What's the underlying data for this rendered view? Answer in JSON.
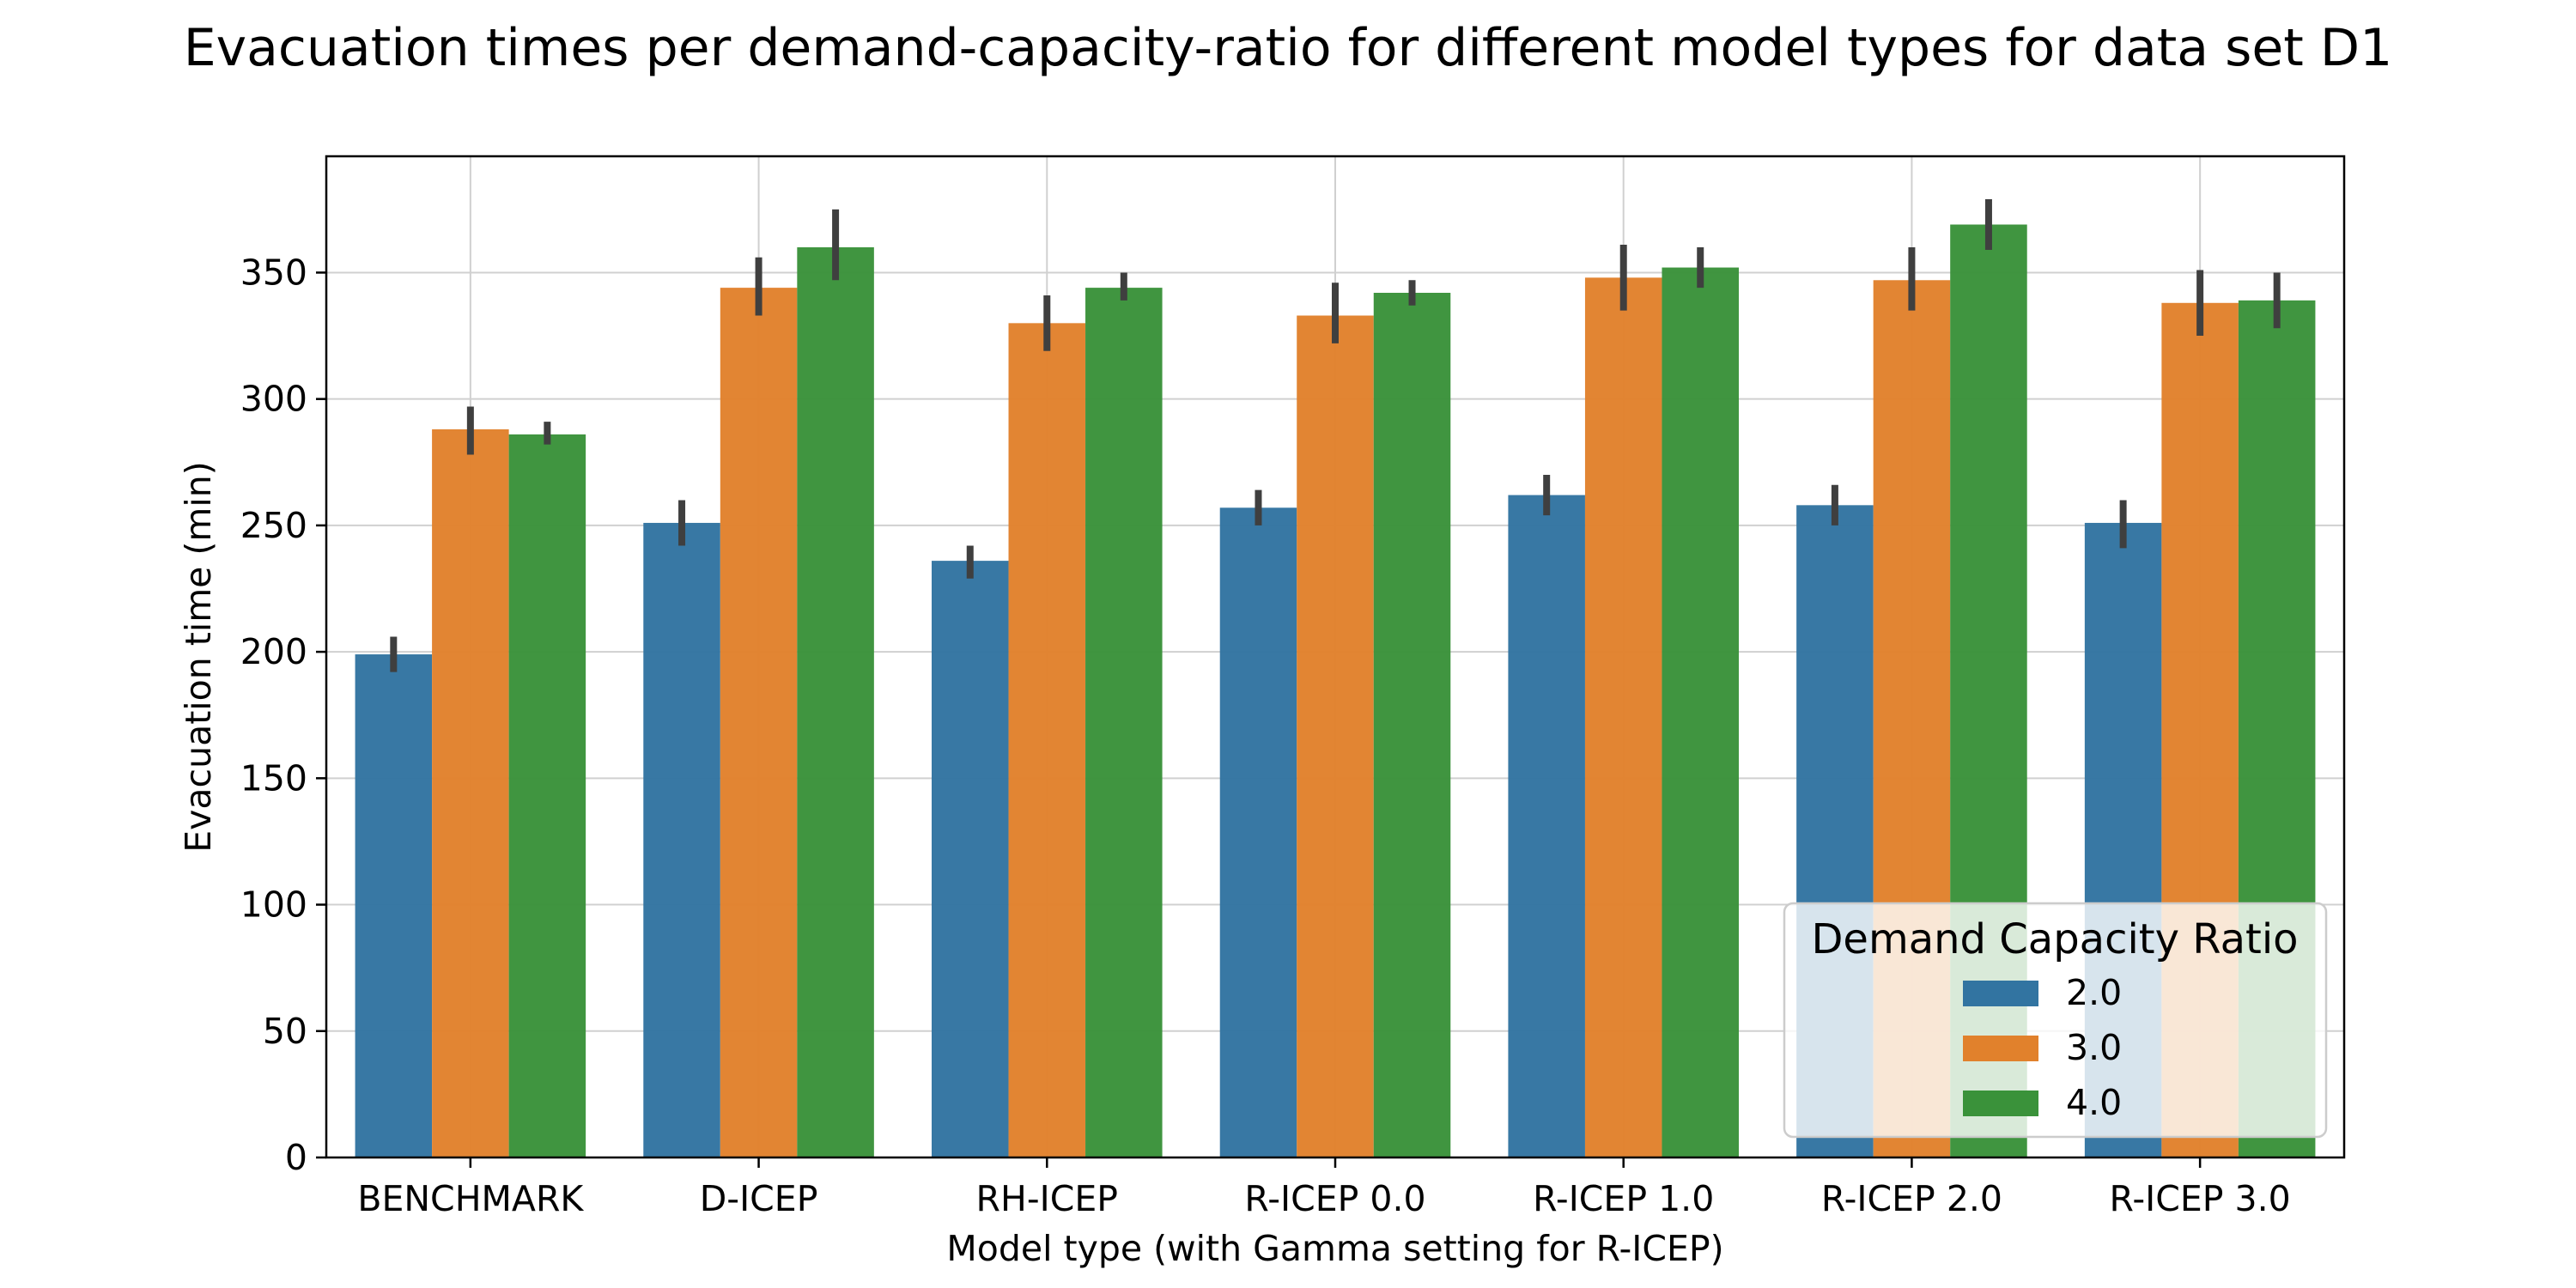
{
  "chart_data": {
    "type": "bar",
    "title": "Evacuation times per demand-capacity-ratio for different model types for data set D1",
    "xlabel": "Model type (with Gamma setting for R-ICEP)",
    "ylabel": "Evacuation time (min)",
    "categories": [
      "BENCHMARK",
      "D-ICEP",
      "RH-ICEP",
      "R-ICEP 0.0",
      "R-ICEP 1.0",
      "R-ICEP 2.0",
      "R-ICEP 3.0"
    ],
    "ylim": [
      0,
      396
    ],
    "yticks": [
      0,
      50,
      100,
      150,
      200,
      250,
      300,
      350
    ],
    "grid": true,
    "legend": {
      "title": "Demand Capacity Ratio",
      "placement": "lower-right"
    },
    "series": [
      {
        "name": "2.0",
        "color": "#3274a1",
        "values": [
          199,
          251,
          236,
          257,
          262,
          258,
          251
        ],
        "err_low": [
          192,
          242,
          229,
          250,
          254,
          250,
          241
        ],
        "err_high": [
          206,
          260,
          242,
          264,
          270,
          266,
          260
        ]
      },
      {
        "name": "3.0",
        "color": "#e1812c",
        "values": [
          288,
          344,
          330,
          333,
          348,
          347,
          338
        ],
        "err_low": [
          278,
          333,
          319,
          322,
          335,
          335,
          325
        ],
        "err_high": [
          297,
          356,
          341,
          346,
          361,
          360,
          351
        ]
      },
      {
        "name": "4.0",
        "color": "#3a923a",
        "values": [
          286,
          360,
          344,
          342,
          352,
          369,
          339
        ],
        "err_low": [
          282,
          347,
          339,
          337,
          344,
          359,
          328
        ],
        "err_high": [
          291,
          375,
          350,
          347,
          360,
          379,
          350
        ]
      }
    ]
  }
}
